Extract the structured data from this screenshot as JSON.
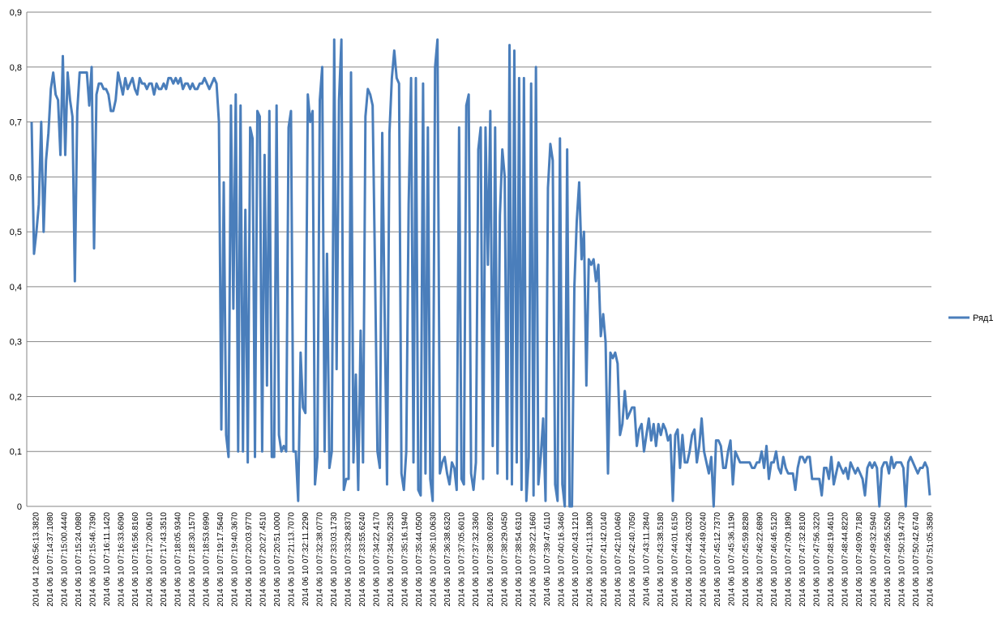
{
  "chart_data": {
    "type": "line",
    "title": "",
    "xlabel": "",
    "ylabel": "",
    "ylim": [
      0,
      0.9
    ],
    "yticks": [
      "0",
      "0,1",
      "0,2",
      "0,3",
      "0,4",
      "0,5",
      "0,6",
      "0,7",
      "0,8",
      "0,9"
    ],
    "grid": true,
    "legend_position": "right",
    "series_color": "#4a7ebb",
    "x_tick_labels": [
      "2014 04 12 06:56:13.3820",
      "2014 06 10 07:14:37.1080",
      "2014 06 10 07:15:00.4440",
      "2014 06 10 07:15:24.0980",
      "2014 06 10 07:15:46.7390",
      "2014 06 10 07:16:11.1420",
      "2014 06 10 07:16:33.6090",
      "2014 06 10 07:16:56.8160",
      "2014 06 10 07:17:20.0610",
      "2014 06 10 07:17:43.3510",
      "2014 06 10 07:18:05.9340",
      "2014 06 10 07:18:30.1570",
      "2014 06 10 07:18:53.6990",
      "2014 06 10 07:19:17.5640",
      "2014 06 10 07:19:40.3670",
      "2014 06 10 07:20:03.9770",
      "2014 06 10 07:20:27.4510",
      "2014 06 10 07:20:51.0000",
      "2014 06 10 07:21:13.7070",
      "2014 06 10 07:32:11.2290",
      "2014 06 10 07:32:38.0770",
      "2014 06 10 07:33:03.1730",
      "2014 06 10 07:33:29.8370",
      "2014 06 10 07:33:55.6240",
      "2014 06 10 07:34:22.4170",
      "2014 06 10 07:34:50.2530",
      "2014 06 10 07:35:16.1940",
      "2014 06 10 07:35:44.0500",
      "2014 06 10 07:36:10.0630",
      "2014 06 10 07:36:38.6320",
      "2014 06 10 07:37:05.6010",
      "2014 06 10 07:37:32.3360",
      "2014 06 10 07:38:00.6920",
      "2014 06 10 07:38:29.0450",
      "2014 06 10 07:38:54.6310",
      "2014 06 10 07:39:22.1660",
      "2014 06 10 07:39:47.6110",
      "2014 06 10 07:40:16.3460",
      "2014 06 10 07:40:43.1210",
      "2014 06 10 07:41:13.1800",
      "2014 06 10 07:41:42.0140",
      "2014 06 10 07:42:10.0460",
      "2014 06 10 07:42:40.7050",
      "2014 06 10 07:43:11.2840",
      "2014 06 10 07:43:38.5180",
      "2014 06 10 07:44:01.6150",
      "2014 06 10 07:44:26.0320",
      "2014 06 10 07:44:49.0240",
      "2014 06 10 07:45:12.7370",
      "2014 06 10 07:45:36.1190",
      "2014 06 10 07:45:59.8280",
      "2014 06 10 07:46:22.6890",
      "2014 06 10 07:46:46.5120",
      "2014 06 10 07:47:09.1890",
      "2014 06 10 07:47:32.8100",
      "2014 06 10 07:47:56.3220",
      "2014 06 10 07:48:19.4610",
      "2014 06 10 07:48:44.8220",
      "2014 06 10 07:49:09.7180",
      "2014 06 10 07:49:32.5940",
      "2014 06 10 07:49:56.5260",
      "2014 06 10 07:50:19.4730",
      "2014 06 10 07:50:42.6740",
      "2014 06 10 07:51:05.3580"
    ],
    "series": [
      {
        "name": "Ряд1",
        "values": [
          0.7,
          0.46,
          0.5,
          0.55,
          0.7,
          0.5,
          0.63,
          0.68,
          0.76,
          0.79,
          0.75,
          0.74,
          0.64,
          0.82,
          0.64,
          0.79,
          0.74,
          0.71,
          0.41,
          0.72,
          0.79,
          0.79,
          0.79,
          0.79,
          0.73,
          0.8,
          0.47,
          0.75,
          0.77,
          0.77,
          0.76,
          0.76,
          0.75,
          0.72,
          0.72,
          0.74,
          0.79,
          0.77,
          0.75,
          0.78,
          0.76,
          0.77,
          0.78,
          0.76,
          0.75,
          0.78,
          0.77,
          0.77,
          0.76,
          0.77,
          0.77,
          0.75,
          0.77,
          0.76,
          0.76,
          0.77,
          0.76,
          0.78,
          0.78,
          0.77,
          0.78,
          0.77,
          0.78,
          0.76,
          0.77,
          0.77,
          0.76,
          0.77,
          0.76,
          0.76,
          0.77,
          0.77,
          0.78,
          0.77,
          0.76,
          0.77,
          0.78,
          0.77,
          0.7,
          0.14,
          0.59,
          0.13,
          0.09,
          0.73,
          0.36,
          0.75,
          0.1,
          0.73,
          0.1,
          0.54,
          0.08,
          0.69,
          0.67,
          0.09,
          0.72,
          0.71,
          0.1,
          0.64,
          0.22,
          0.72,
          0.09,
          0.09,
          0.73,
          0.13,
          0.1,
          0.11,
          0.1,
          0.69,
          0.72,
          0.1,
          0.1,
          0.01,
          0.28,
          0.18,
          0.17,
          0.75,
          0.7,
          0.72,
          0.04,
          0.09,
          0.74,
          0.8,
          0.1,
          0.46,
          0.07,
          0.1,
          0.85,
          0.25,
          0.74,
          0.85,
          0.03,
          0.05,
          0.05,
          0.79,
          0.08,
          0.24,
          0.03,
          0.32,
          0.08,
          0.71,
          0.76,
          0.75,
          0.73,
          0.43,
          0.1,
          0.07,
          0.68,
          0.35,
          0.04,
          0.68,
          0.78,
          0.83,
          0.78,
          0.77,
          0.06,
          0.03,
          0.1,
          0.55,
          0.78,
          0.08,
          0.78,
          0.03,
          0.02,
          0.77,
          0.06,
          0.69,
          0.05,
          0.01,
          0.8,
          0.85,
          0.06,
          0.08,
          0.09,
          0.06,
          0.04,
          0.08,
          0.07,
          0.03,
          0.69,
          0.05,
          0.04,
          0.73,
          0.75,
          0.06,
          0.03,
          0.08,
          0.65,
          0.69,
          0.05,
          0.69,
          0.44,
          0.72,
          0.11,
          0.69,
          0.06,
          0.53,
          0.65,
          0.6,
          0.05,
          0.84,
          0.04,
          0.83,
          0.08,
          0.78,
          0.03,
          0.78,
          0.01,
          0.09,
          0.77,
          0.02,
          0.8,
          0.04,
          0.09,
          0.16,
          0.01,
          0.58,
          0.66,
          0.63,
          0.04,
          0.01,
          0.67,
          0.04,
          0.0,
          0.65,
          0.0,
          0.0,
          0.4,
          0.52,
          0.59,
          0.45,
          0.5,
          0.22,
          0.45,
          0.44,
          0.45,
          0.41,
          0.44,
          0.31,
          0.35,
          0.3,
          0.06,
          0.28,
          0.27,
          0.28,
          0.26,
          0.13,
          0.15,
          0.21,
          0.16,
          0.17,
          0.18,
          0.18,
          0.11,
          0.14,
          0.15,
          0.1,
          0.13,
          0.16,
          0.12,
          0.15,
          0.11,
          0.15,
          0.13,
          0.15,
          0.14,
          0.12,
          0.13,
          0.01,
          0.13,
          0.14,
          0.07,
          0.13,
          0.08,
          0.08,
          0.1,
          0.13,
          0.14,
          0.08,
          0.11,
          0.16,
          0.1,
          0.08,
          0.06,
          0.09,
          0.0,
          0.12,
          0.12,
          0.11,
          0.07,
          0.07,
          0.1,
          0.12,
          0.04,
          0.1,
          0.09,
          0.08,
          0.08,
          0.08,
          0.08,
          0.08,
          0.07,
          0.07,
          0.08,
          0.08,
          0.1,
          0.07,
          0.11,
          0.05,
          0.08,
          0.08,
          0.1,
          0.07,
          0.06,
          0.09,
          0.07,
          0.06,
          0.06,
          0.06,
          0.03,
          0.07,
          0.09,
          0.09,
          0.08,
          0.09,
          0.09,
          0.05,
          0.05,
          0.05,
          0.05,
          0.02,
          0.07,
          0.07,
          0.05,
          0.09,
          0.04,
          0.06,
          0.08,
          0.07,
          0.06,
          0.07,
          0.05,
          0.08,
          0.07,
          0.06,
          0.07,
          0.06,
          0.05,
          0.02,
          0.07,
          0.08,
          0.07,
          0.08,
          0.07,
          0.0,
          0.07,
          0.08,
          0.08,
          0.06,
          0.09,
          0.07,
          0.08,
          0.08,
          0.08,
          0.07,
          0.0,
          0.08,
          0.09,
          0.08,
          0.07,
          0.06,
          0.07,
          0.07,
          0.08,
          0.07,
          0.02
        ]
      }
    ]
  }
}
